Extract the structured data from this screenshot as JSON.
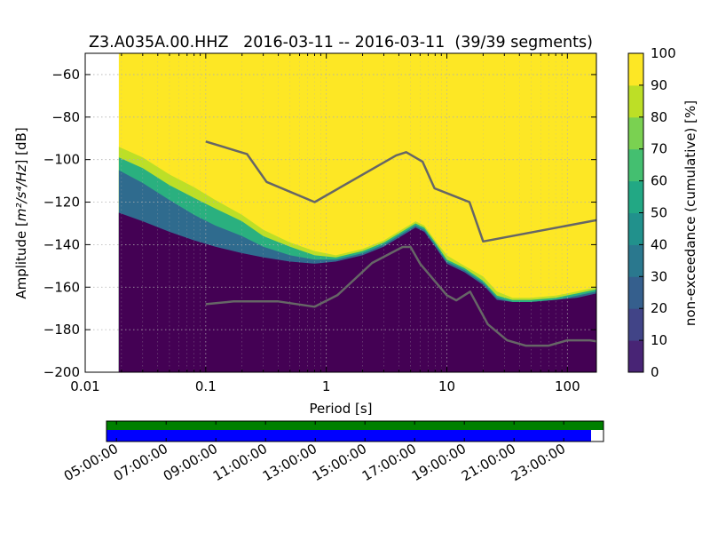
{
  "chart_data": {
    "type": "heatmap",
    "title": "Z3.A035A.00.HHZ   2016-03-11 -- 2016-03-11  (39/39 segments)",
    "xlabel": "Period [s]",
    "ylabel_prefix": "Amplitude [",
    "ylabel_math": "m²/s⁴/Hz",
    "ylabel_suffix": "] [dB]",
    "x_scale": "log",
    "xlim": [
      0.01,
      174
    ],
    "ylim": [
      -200,
      -50
    ],
    "x_ticks": [
      0.01,
      0.1,
      1,
      10,
      100
    ],
    "x_tick_labels": [
      "0.01",
      "0.1",
      "1",
      "10",
      "100"
    ],
    "y_ticks": [
      -200,
      -180,
      -160,
      -140,
      -120,
      -100,
      -80,
      -60
    ],
    "y_tick_labels": [
      "−200",
      "−180",
      "−160",
      "−140",
      "−120",
      "−100",
      "−80",
      "−60"
    ],
    "grid": true,
    "data_period_start": 0.019,
    "percentile_bands": [
      {
        "level": 90,
        "color": "#bcdf27",
        "upper": [
          [
            0.019,
            -94
          ],
          [
            0.03,
            -99
          ],
          [
            0.05,
            -107
          ],
          [
            0.08,
            -113
          ],
          [
            0.12,
            -119
          ],
          [
            0.2,
            -126
          ],
          [
            0.3,
            -133
          ],
          [
            0.5,
            -139
          ],
          [
            0.8,
            -143
          ],
          [
            1.2,
            -145
          ],
          [
            2,
            -142
          ],
          [
            3,
            -138
          ],
          [
            4.5,
            -132
          ],
          [
            5.5,
            -129
          ],
          [
            6.5,
            -131
          ],
          [
            8,
            -138
          ],
          [
            10,
            -145
          ],
          [
            14,
            -150
          ],
          [
            20,
            -155
          ],
          [
            26,
            -162
          ],
          [
            35,
            -165
          ],
          [
            50,
            -165
          ],
          [
            80,
            -164
          ],
          [
            120,
            -162
          ],
          [
            174,
            -160
          ]
        ]
      },
      {
        "level": 70,
        "color": "#2ab07f",
        "upper": [
          [
            0.019,
            -99
          ],
          [
            0.03,
            -104
          ],
          [
            0.05,
            -112
          ],
          [
            0.08,
            -118
          ],
          [
            0.12,
            -123
          ],
          [
            0.2,
            -129
          ],
          [
            0.3,
            -136
          ],
          [
            0.5,
            -141
          ],
          [
            0.8,
            -145
          ],
          [
            1.2,
            -146
          ],
          [
            2,
            -143
          ],
          [
            3,
            -139
          ],
          [
            4.5,
            -133
          ],
          [
            5.5,
            -130
          ],
          [
            6.5,
            -132
          ],
          [
            8,
            -139
          ],
          [
            10,
            -147
          ],
          [
            14,
            -151
          ],
          [
            20,
            -157
          ],
          [
            26,
            -164
          ],
          [
            35,
            -166
          ],
          [
            50,
            -166
          ],
          [
            80,
            -165
          ],
          [
            120,
            -163
          ],
          [
            174,
            -161
          ]
        ]
      },
      {
        "level": 40,
        "color": "#2f6b8e",
        "upper": [
          [
            0.019,
            -105
          ],
          [
            0.03,
            -111
          ],
          [
            0.05,
            -119
          ],
          [
            0.08,
            -126
          ],
          [
            0.12,
            -131
          ],
          [
            0.2,
            -136
          ],
          [
            0.3,
            -141
          ],
          [
            0.5,
            -145
          ],
          [
            0.8,
            -147
          ],
          [
            1.2,
            -147
          ],
          [
            2,
            -144
          ],
          [
            3,
            -140
          ],
          [
            4.5,
            -134
          ],
          [
            5.5,
            -131
          ],
          [
            6.5,
            -133
          ],
          [
            8,
            -140
          ],
          [
            10,
            -148
          ],
          [
            14,
            -152
          ],
          [
            20,
            -158
          ],
          [
            26,
            -165
          ],
          [
            35,
            -167
          ],
          [
            50,
            -167
          ],
          [
            80,
            -166
          ],
          [
            120,
            -164
          ],
          [
            174,
            -162
          ]
        ]
      },
      {
        "level": 10,
        "color": "#46337e",
        "upper": [
          [
            0.019,
            -125
          ],
          [
            0.03,
            -129
          ],
          [
            0.05,
            -134
          ],
          [
            0.08,
            -138
          ],
          [
            0.12,
            -141
          ],
          [
            0.2,
            -144
          ],
          [
            0.3,
            -146
          ],
          [
            0.5,
            -148
          ],
          [
            0.8,
            -149
          ],
          [
            1.2,
            -148
          ],
          [
            2,
            -145
          ],
          [
            3,
            -141
          ],
          [
            4.5,
            -135
          ],
          [
            5.5,
            -132
          ],
          [
            6.5,
            -134
          ],
          [
            8,
            -141
          ],
          [
            10,
            -149
          ],
          [
            14,
            -153
          ],
          [
            20,
            -159
          ],
          [
            26,
            -166
          ],
          [
            35,
            -167
          ],
          [
            50,
            -167
          ],
          [
            80,
            -166
          ],
          [
            120,
            -165
          ],
          [
            174,
            -163
          ]
        ]
      }
    ],
    "base_color": "#440154",
    "above_color": "#fde725",
    "nhnm": {
      "name": "NHNM",
      "color": "#666666",
      "points": [
        [
          0.1,
          -91.5
        ],
        [
          0.22,
          -97.4
        ],
        [
          0.32,
          -110.5
        ],
        [
          0.8,
          -120
        ],
        [
          3.8,
          -98
        ],
        [
          4.6,
          -96.5
        ],
        [
          6.3,
          -101
        ],
        [
          7.9,
          -113.5
        ],
        [
          15.4,
          -120
        ],
        [
          20,
          -138.5
        ],
        [
          174,
          -128.5
        ]
      ]
    },
    "nlnm": {
      "name": "NLNM",
      "color": "#666666",
      "points": [
        [
          0.1,
          -168
        ],
        [
          0.17,
          -166.7
        ],
        [
          0.4,
          -166.7
        ],
        [
          0.8,
          -169.2
        ],
        [
          1.24,
          -163.7
        ],
        [
          2.4,
          -148.6
        ],
        [
          4.3,
          -141.1
        ],
        [
          5,
          -141.1
        ],
        [
          6,
          -149
        ],
        [
          10,
          -163.8
        ],
        [
          12,
          -166.2
        ],
        [
          15.6,
          -162.1
        ],
        [
          21.9,
          -177.5
        ],
        [
          31.6,
          -185
        ],
        [
          45,
          -187.5
        ],
        [
          70,
          -187.5
        ],
        [
          100,
          -185
        ],
        [
          154,
          -185
        ],
        [
          174,
          -185.5
        ]
      ]
    },
    "colorbar": {
      "label": "non-exceedance (cumulative) [%]",
      "range": [
        0,
        100
      ],
      "ticks": [
        "0",
        "10",
        "20",
        "30",
        "40",
        "50",
        "60",
        "70",
        "80",
        "90",
        "100"
      ],
      "colors": [
        "#440154",
        "#482475",
        "#414487",
        "#355f8d",
        "#2a788e",
        "#21918c",
        "#22a884",
        "#44bf70",
        "#7ad151",
        "#bddf26",
        "#fde725"
      ]
    },
    "timeline": {
      "tick_labels": [
        "05:00:00",
        "07:00:00",
        "09:00:00",
        "11:00:00",
        "13:00:00",
        "15:00:00",
        "17:00:00",
        "19:00:00",
        "21:00:00",
        "23:00:00"
      ],
      "tick_hours": [
        5,
        7,
        9,
        11,
        13,
        15,
        17,
        19,
        21,
        23
      ],
      "start_hour": 4.6,
      "end_hour": 24.6,
      "coverage_color": "#008000",
      "data_color": "#0000ff",
      "coverage": [
        4.6,
        24.6
      ],
      "data": [
        4.6,
        24.1
      ]
    }
  }
}
